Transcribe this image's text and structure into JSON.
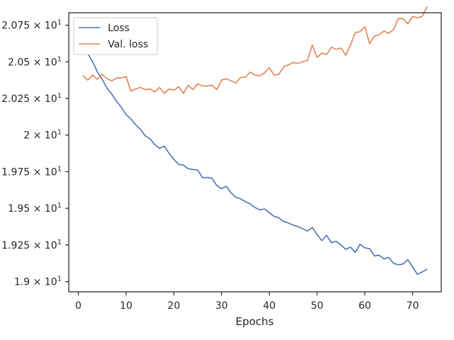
{
  "chart_data": {
    "type": "line",
    "title": "",
    "xlabel": "Epochs",
    "ylabel": "",
    "xlim": [
      -2,
      76
    ],
    "ylim": [
      18.93,
      20.835
    ],
    "grid": false,
    "legend_position": "top-left",
    "x_ticks": [
      {
        "value": 0,
        "label": "0"
      },
      {
        "value": 10,
        "label": "10"
      },
      {
        "value": 20,
        "label": "20"
      },
      {
        "value": 30,
        "label": "30"
      },
      {
        "value": 40,
        "label": "40"
      },
      {
        "value": 50,
        "label": "50"
      },
      {
        "value": 60,
        "label": "60"
      },
      {
        "value": 70,
        "label": "70"
      }
    ],
    "y_ticks": [
      {
        "value": 19.0,
        "label": "1.9 × 10",
        "exp": "1"
      },
      {
        "value": 19.25,
        "label": "1.925 × 10",
        "exp": "1"
      },
      {
        "value": 19.5,
        "label": "1.95 × 10",
        "exp": "1"
      },
      {
        "value": 19.75,
        "label": "1.975 × 10",
        "exp": "1"
      },
      {
        "value": 20.0,
        "label": "2 × 10",
        "exp": "1"
      },
      {
        "value": 20.25,
        "label": "2.025 × 10",
        "exp": "1"
      },
      {
        "value": 20.5,
        "label": "2.05 × 10",
        "exp": "1"
      },
      {
        "value": 20.75,
        "label": "2.075 × 10",
        "exp": "1"
      }
    ],
    "x": [
      1,
      2,
      3,
      4,
      5,
      6,
      7,
      8,
      9,
      10,
      11,
      12,
      13,
      14,
      15,
      16,
      17,
      18,
      19,
      20,
      21,
      22,
      23,
      24,
      25,
      26,
      27,
      28,
      29,
      30,
      31,
      32,
      33,
      34,
      35,
      36,
      37,
      38,
      39,
      40,
      41,
      42,
      43,
      44,
      45,
      46,
      47,
      48,
      49,
      50,
      51,
      52,
      53,
      54,
      55,
      56,
      57,
      58,
      59,
      60,
      61,
      62,
      63,
      64,
      65,
      66,
      67,
      68,
      69,
      70,
      71,
      72,
      73
    ],
    "series": [
      {
        "name": "Loss",
        "color": "#4c72b0",
        "values": [
          20.63,
          20.555,
          20.5,
          20.43,
          20.38,
          20.32,
          20.28,
          20.23,
          20.19,
          20.14,
          20.11,
          20.07,
          20.04,
          19.995,
          19.975,
          19.935,
          19.91,
          19.925,
          19.875,
          19.835,
          19.8,
          19.795,
          19.77,
          19.765,
          19.76,
          19.71,
          19.71,
          19.705,
          19.655,
          19.635,
          19.65,
          19.605,
          19.575,
          19.565,
          19.545,
          19.53,
          19.505,
          19.49,
          19.495,
          19.47,
          19.445,
          19.435,
          19.41,
          19.4,
          19.385,
          19.375,
          19.36,
          19.345,
          19.37,
          19.32,
          19.28,
          19.315,
          19.265,
          19.275,
          19.25,
          19.22,
          19.235,
          19.2,
          19.255,
          19.23,
          19.225,
          19.175,
          19.18,
          19.155,
          19.165,
          19.125,
          19.115,
          19.12,
          19.15,
          19.1,
          19.05,
          19.065,
          19.085
        ]
      },
      {
        "name": "Val. loss",
        "color": "#dd8452",
        "values": [
          20.405,
          20.375,
          20.41,
          20.38,
          20.415,
          20.385,
          20.37,
          20.39,
          20.39,
          20.4,
          20.3,
          20.315,
          20.325,
          20.31,
          20.315,
          20.295,
          20.325,
          20.285,
          20.315,
          20.305,
          20.33,
          20.285,
          20.34,
          20.31,
          20.35,
          20.335,
          20.335,
          20.34,
          20.31,
          20.375,
          20.385,
          20.37,
          20.355,
          20.395,
          20.395,
          20.43,
          20.41,
          20.405,
          20.425,
          20.46,
          20.41,
          20.415,
          20.465,
          20.48,
          20.495,
          20.49,
          20.5,
          20.51,
          20.615,
          20.53,
          20.56,
          20.55,
          20.6,
          20.585,
          20.595,
          20.545,
          20.615,
          20.7,
          20.705,
          20.74,
          20.625,
          20.675,
          20.685,
          20.71,
          20.695,
          20.72,
          20.795,
          20.795,
          20.76,
          20.81,
          20.8,
          20.81,
          20.875
        ]
      }
    ]
  }
}
